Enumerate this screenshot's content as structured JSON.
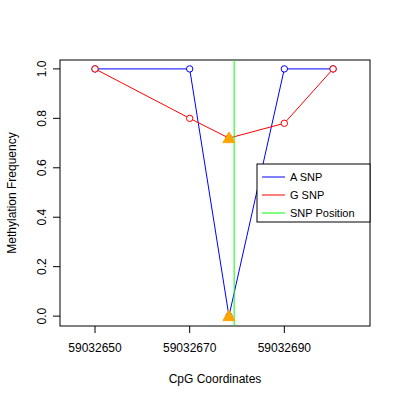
{
  "chart_data": {
    "type": "line",
    "x_label": "CpG Coordinates",
    "y_label": "Methylation Frequency",
    "x": [
      59032650,
      59032670,
      59032678.3,
      59032690,
      59032700.3
    ],
    "series": [
      {
        "name": "A SNP",
        "color": "#0000ff",
        "marker": "circle",
        "line_style": "solid",
        "values": [
          1.0,
          1.0,
          0.0,
          1.0,
          1.0
        ]
      },
      {
        "name": "G SNP",
        "color": "#ff0000",
        "marker": "circle",
        "line_style": "solid",
        "values": [
          1.0,
          0.8,
          0.72,
          0.78,
          1.0
        ]
      },
      {
        "type": "scatter",
        "color": "#ffa500",
        "marker": "triangle",
        "x": [
          59032678.3,
          59032678.3
        ],
        "values": [
          0.72,
          0
        ]
      },
      {
        "name": "SNP Position",
        "type": "vline",
        "color": "#00ff00",
        "line_style": "solid",
        "x": [
          59032679.4
        ]
      }
    ],
    "xlim": [
      59032642.6,
      59032708.1
    ],
    "xticks": [
      59032650,
      59032670,
      59032690
    ],
    "ylim": [
      -0.04,
      1.036
    ],
    "yticks": [
      {
        "value": 0,
        "label": "0.0"
      },
      0.2,
      0.4,
      0.6,
      0.8,
      {
        "value": 1,
        "label": "1.0"
      }
    ],
    "grid": false,
    "legend": "right"
  }
}
